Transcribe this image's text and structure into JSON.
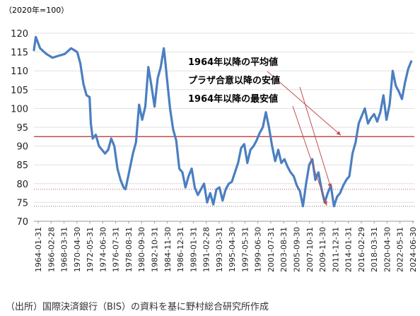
{
  "unit_label": "（2020年=100）",
  "source_note": "（出所）国際決済銀行（BIS）の資料を基に野村総合研究所作成",
  "colors": {
    "series": "#4a7fc1",
    "average": "#c0504d",
    "ref_line": "#c0504d",
    "arrow": "#c0504d",
    "grid": "#e0e0e0"
  },
  "chart_data": {
    "type": "line",
    "title": "",
    "xlabel": "",
    "ylabel": "",
    "ylim": [
      70,
      120
    ],
    "yticks": [
      70,
      75,
      80,
      85,
      90,
      95,
      100,
      105,
      110,
      115,
      120
    ],
    "xtick_labels": [
      "1964-01-31",
      "1966-02-28",
      "1968-03-31",
      "1970-04-30",
      "1972-05-31",
      "1974-06-30",
      "1976-07-31",
      "1978-08-31",
      "1980-09-30",
      "1982-10-31",
      "1984-11-30",
      "1986-12-31",
      "1989-01-31",
      "1991-02-28",
      "1993-03-31",
      "1995-04-30",
      "1997-05-31",
      "1999-06-30",
      "2001-07-31",
      "2003-08-31",
      "2005-09-30",
      "2007-10-31",
      "2009-11-30",
      "2011-12-31",
      "2014-01-31",
      "2016-02-29",
      "2018-03-31",
      "2020-04-30",
      "2022-05-31",
      "2024-06-30"
    ],
    "grid": true,
    "series": [
      {
        "name": "",
        "x": [
          1964.0,
          1964.3,
          1965.0,
          1966.0,
          1967.0,
          1968.0,
          1969.0,
          1970.0,
          1970.5,
          1971.0,
          1971.5,
          1972.0,
          1972.5,
          1973.0,
          1973.2,
          1973.5,
          1974.0,
          1974.5,
          1975.0,
          1975.5,
          1976.0,
          1976.5,
          1977.0,
          1977.5,
          1978.0,
          1978.5,
          1978.8,
          1979.0,
          1979.5,
          1980.0,
          1980.5,
          1981.0,
          1981.5,
          1982.0,
          1982.5,
          1983.0,
          1983.5,
          1984.0,
          1984.5,
          1985.0,
          1985.2,
          1985.5,
          1986.0,
          1986.5,
          1987.0,
          1987.5,
          1988.0,
          1988.5,
          1989.0,
          1989.5,
          1990.0,
          1990.5,
          1991.0,
          1991.5,
          1992.0,
          1992.5,
          1993.0,
          1993.5,
          1994.0,
          1994.5,
          1995.0,
          1995.5,
          1996.0,
          1996.5,
          1997.0,
          1997.5,
          1998.0,
          1998.5,
          1999.0,
          1999.5,
          2000.0,
          2000.5,
          2001.0,
          2001.5,
          2002.0,
          2002.5,
          2003.0,
          2003.5,
          2004.0,
          2004.5,
          2005.0,
          2005.5,
          2006.0,
          2006.5,
          2007.0,
          2007.5,
          2008.0,
          2008.5,
          2009.0,
          2009.5,
          2010.0,
          2010.5,
          2011.0,
          2011.5,
          2012.0,
          2012.5,
          2013.0,
          2013.5,
          2014.0,
          2014.5,
          2015.0,
          2015.5,
          2016.0,
          2016.5,
          2017.0,
          2017.5,
          2018.0,
          2018.5,
          2019.0,
          2019.5,
          2020.0,
          2020.5,
          2021.0,
          2021.5,
          2022.0,
          2022.5,
          2023.0,
          2023.5,
          2024.0,
          2024.5,
          2025.0
        ],
        "y": [
          115.5,
          119.0,
          116.0,
          114.5,
          113.5,
          114.0,
          114.5,
          116.0,
          115.5,
          115.0,
          112.0,
          106.5,
          103.5,
          103.0,
          96.0,
          92.0,
          93.0,
          90.0,
          89.0,
          88.0,
          89.0,
          92.0,
          90.0,
          84.0,
          81.0,
          79.0,
          78.5,
          80.0,
          84.0,
          88.0,
          91.0,
          101.0,
          97.0,
          100.5,
          111.0,
          106.0,
          100.5,
          108.0,
          111.0,
          116.0,
          113.0,
          108.0,
          100.0,
          94.5,
          91.5,
          84.0,
          83.0,
          79.0,
          82.0,
          84.0,
          79.0,
          77.0,
          78.5,
          80.0,
          75.0,
          77.5,
          74.5,
          78.5,
          79.0,
          75.5,
          78.5,
          80.0,
          80.5,
          83.0,
          85.5,
          89.5,
          90.5,
          85.5,
          89.0,
          90.0,
          91.5,
          93.5,
          95.0,
          99.0,
          95.0,
          90.0,
          86.0,
          89.0,
          85.5,
          86.5,
          84.5,
          83.0,
          82.0,
          79.5,
          78.0,
          74.0,
          80.0,
          85.0,
          86.5,
          81.0,
          83.0,
          78.5,
          75.0,
          77.5,
          79.5,
          74.0,
          76.5,
          77.5,
          79.5,
          81.0,
          82.0,
          88.0,
          91.0,
          96.0,
          98.0,
          100.0,
          96.0,
          97.5,
          98.5,
          96.5,
          99.0,
          103.5,
          97.0,
          101.0,
          110.0,
          106.0,
          104.5,
          102.5,
          107.0,
          110.5,
          112.5
        ]
      }
    ],
    "annotations": [
      {
        "label": "1964年以降の平均値",
        "value": 92.5
      },
      {
        "label": "プラザ合意以降の安値",
        "value": 78.5
      },
      {
        "label": "1964年以降の最安値",
        "value": 74.0
      }
    ]
  }
}
